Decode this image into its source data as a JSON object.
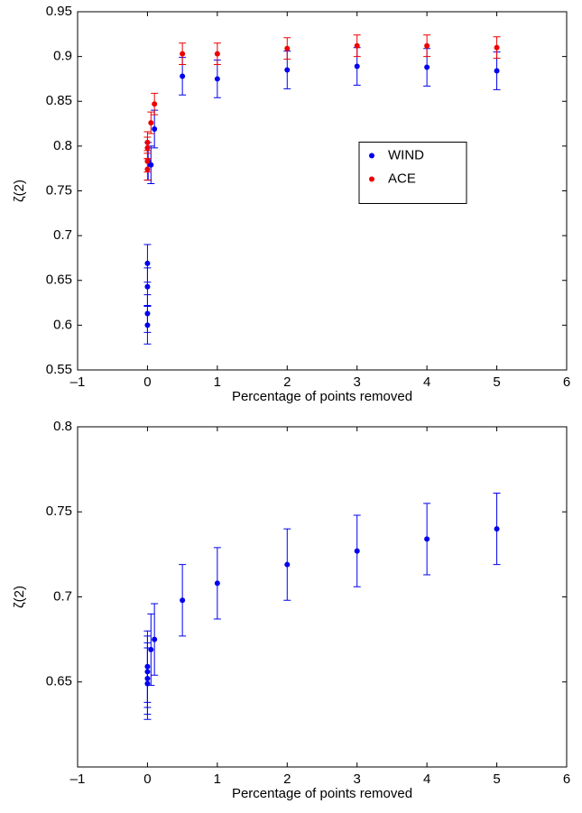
{
  "chart_data": [
    {
      "type": "scatter",
      "xlabel": "Percentage of points removed",
      "ylabel": "ζ(2)",
      "xlim": [
        -1,
        6
      ],
      "ylim": [
        0.55,
        0.95
      ],
      "xticks": [
        {
          "value": -1,
          "label": "–1"
        },
        0,
        1,
        2,
        3,
        4,
        5,
        6
      ],
      "yticks": [
        0.55,
        0.6,
        0.65,
        0.7,
        0.75,
        0.8,
        0.85,
        0.9,
        0.95
      ],
      "legend": "east",
      "series": [
        {
          "name": "WIND",
          "color": "#0000ee",
          "x": [
            0,
            0,
            0,
            0,
            0.01,
            0.05,
            0.1,
            0.5,
            1,
            2,
            3,
            4,
            5
          ],
          "values": [
            0.6,
            0.613,
            0.643,
            0.669,
            0.783,
            0.779,
            0.819,
            0.878,
            0.875,
            0.885,
            0.889,
            0.888,
            0.884
          ],
          "errors": [
            0.021,
            0.021,
            0.021,
            0.021,
            0.021,
            0.021,
            0.021,
            0.021,
            0.021,
            0.021,
            0.021,
            0.021,
            0.021
          ]
        },
        {
          "name": "ACE",
          "color": "#ee0000",
          "x": [
            0,
            0,
            0,
            0,
            0.05,
            0.1,
            0.5,
            1,
            2,
            3,
            4,
            5
          ],
          "values": [
            0.774,
            0.783,
            0.798,
            0.804,
            0.826,
            0.847,
            0.903,
            0.903,
            0.909,
            0.912,
            0.912,
            0.91
          ],
          "errors": [
            0.012,
            0.012,
            0.012,
            0.012,
            0.012,
            0.012,
            0.012,
            0.012,
            0.012,
            0.012,
            0.012,
            0.012
          ]
        }
      ]
    },
    {
      "type": "scatter",
      "xlabel": "Percentage of points removed",
      "ylabel": "ζ(2)",
      "xlim": [
        -1,
        6
      ],
      "ylim": [
        0.6,
        0.8
      ],
      "xticks": [
        {
          "value": -1,
          "label": "–1"
        },
        0,
        1,
        2,
        3,
        4,
        5,
        6
      ],
      "yticks": [
        0.65,
        0.7,
        0.75,
        0.8
      ],
      "series": [
        {
          "color": "#0000ee",
          "x": [
            0,
            0,
            0,
            0,
            0.05,
            0.1,
            0.5,
            1,
            2,
            3,
            4,
            5
          ],
          "values": [
            0.649,
            0.652,
            0.656,
            0.659,
            0.669,
            0.675,
            0.698,
            0.708,
            0.719,
            0.727,
            0.734,
            0.74
          ],
          "errors": [
            0.021,
            0.021,
            0.021,
            0.021,
            0.021,
            0.021,
            0.021,
            0.021,
            0.021,
            0.021,
            0.021,
            0.021
          ]
        }
      ]
    }
  ]
}
